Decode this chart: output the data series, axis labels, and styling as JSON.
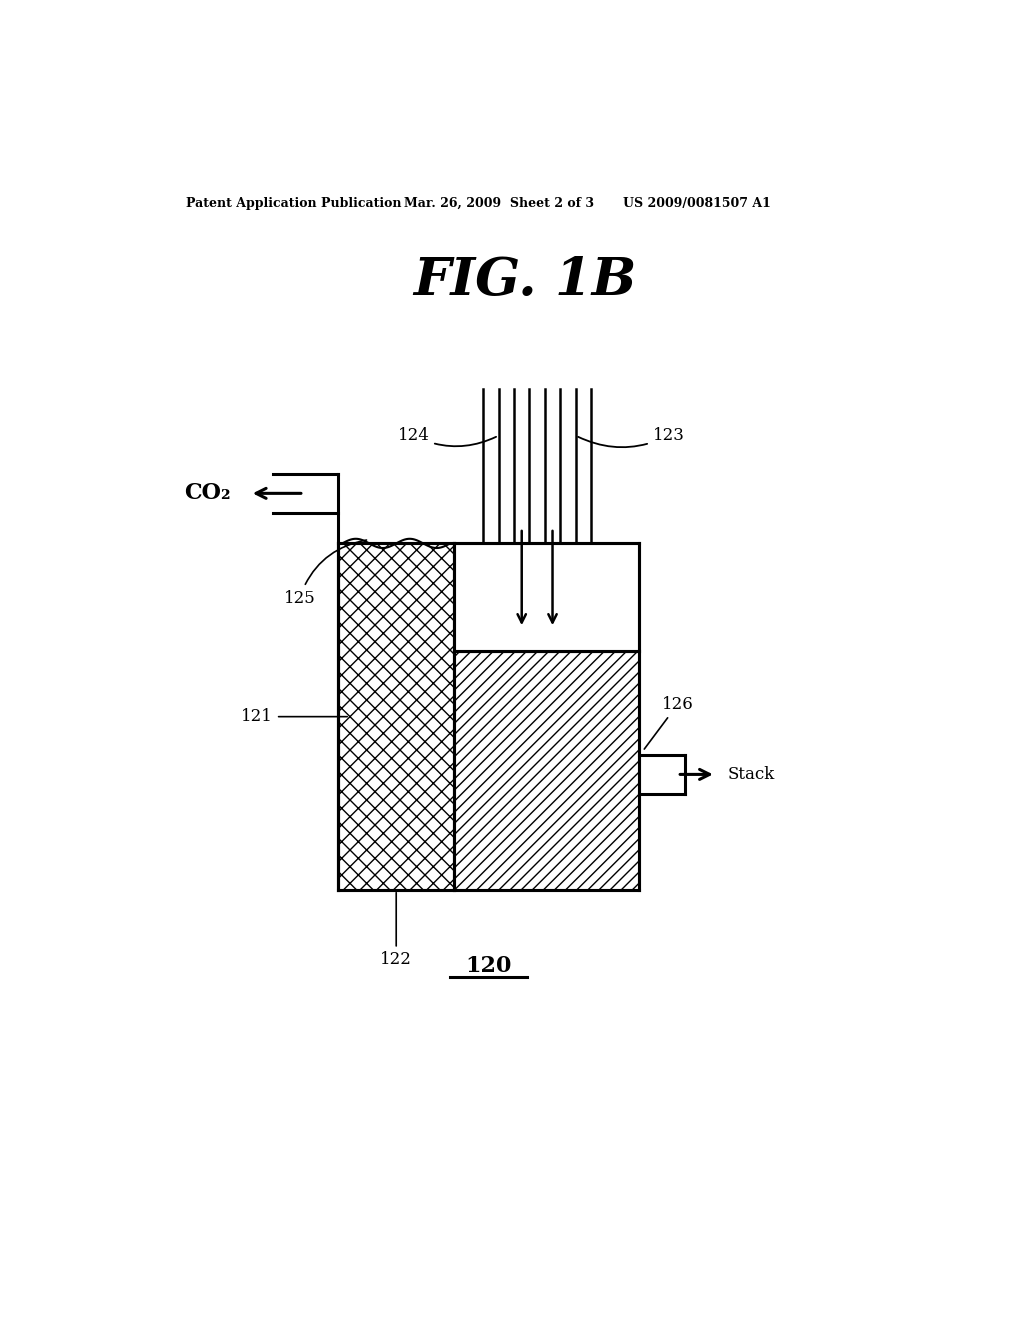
{
  "bg_color": "#ffffff",
  "title": "FIG. 1B",
  "header_left": "Patent Application Publication",
  "header_center": "Mar. 26, 2009  Sheet 2 of 3",
  "header_right": "US 2009/0081507 A1",
  "label_120": "120",
  "label_121": "121",
  "label_122": "122",
  "label_123": "123",
  "label_124": "124",
  "label_125": "125",
  "label_126": "126",
  "label_co2": "CO₂",
  "label_stack": "Stack",
  "title_fontsize": 38,
  "header_fontsize": 9,
  "label_fontsize": 12
}
